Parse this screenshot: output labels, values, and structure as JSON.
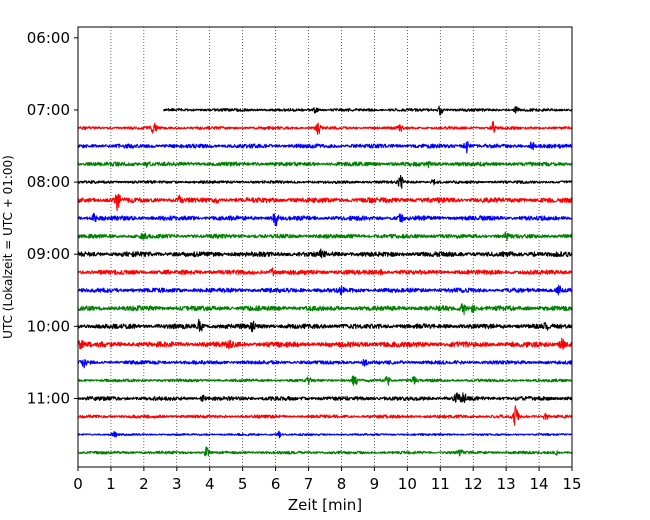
{
  "chart_data": {
    "type": "line",
    "xlabel": "Zeit  [min]",
    "ylabel": "UTC (Lokalzeit = UTC + 01:00)",
    "xlim": [
      0,
      15
    ],
    "x_ticks": [
      0,
      1,
      2,
      3,
      4,
      5,
      6,
      7,
      8,
      9,
      10,
      11,
      12,
      13,
      14,
      15
    ],
    "x_tick_labels": [
      "0",
      "1",
      "2",
      "3",
      "4",
      "5",
      "6",
      "7",
      "8",
      "9",
      "10",
      "11",
      "12",
      "13",
      "14",
      "15"
    ],
    "y_tick_labels": [
      "06:00",
      "07:00",
      "08:00",
      "09:00",
      "10:00",
      "11:00"
    ],
    "y_tick_hours": [
      6,
      7,
      8,
      9,
      10,
      11
    ],
    "ylim_hours": [
      5.85,
      11.95
    ],
    "x_grid": "dotted",
    "row_interval_min": 15,
    "colors": [
      "#000000",
      "#ff0000",
      "#0000ff",
      "#008000"
    ],
    "rows": [
      {
        "start_time": "07:00",
        "color": "#000000",
        "x_start": 2.6,
        "amplitude": 0.35,
        "events": [
          {
            "x": 7.2,
            "amp": 0.8
          },
          {
            "x": 11.0,
            "amp": 1.6
          },
          {
            "x": 13.3,
            "amp": 0.8
          }
        ]
      },
      {
        "start_time": "07:15",
        "color": "#ff0000",
        "x_start": 0,
        "amplitude": 0.35,
        "events": [
          {
            "x": 2.3,
            "amp": 1.6
          },
          {
            "x": 7.3,
            "amp": 2.0
          },
          {
            "x": 9.8,
            "amp": 0.7
          },
          {
            "x": 12.6,
            "amp": 1.8
          }
        ]
      },
      {
        "start_time": "07:30",
        "color": "#0000ff",
        "x_start": 0,
        "amplitude": 0.5,
        "events": [
          {
            "x": 11.8,
            "amp": 1.8
          },
          {
            "x": 13.8,
            "amp": 1.6
          }
        ]
      },
      {
        "start_time": "07:45",
        "color": "#008000",
        "x_start": 0,
        "amplitude": 0.5,
        "events": [
          {
            "x": 2.1,
            "amp": 0.8
          },
          {
            "x": 10.6,
            "amp": 0.9
          }
        ]
      },
      {
        "start_time": "08:00",
        "color": "#000000",
        "x_start": 0,
        "amplitude": 0.35,
        "events": [
          {
            "x": 9.8,
            "amp": 1.9
          },
          {
            "x": 10.8,
            "amp": 0.8
          }
        ]
      },
      {
        "start_time": "08:15",
        "color": "#ff0000",
        "x_start": 0,
        "amplitude": 0.6,
        "events": [
          {
            "x": 1.2,
            "amp": 2.8
          },
          {
            "x": 3.1,
            "amp": 1.3
          },
          {
            "x": 4.2,
            "amp": 1.2
          }
        ]
      },
      {
        "start_time": "08:30",
        "color": "#0000ff",
        "x_start": 0,
        "amplitude": 0.55,
        "events": [
          {
            "x": 0.5,
            "amp": 1.1
          },
          {
            "x": 6.0,
            "amp": 2.2
          },
          {
            "x": 9.8,
            "amp": 1.1
          }
        ]
      },
      {
        "start_time": "08:45",
        "color": "#008000",
        "x_start": 0,
        "amplitude": 0.5,
        "events": [
          {
            "x": 2.0,
            "amp": 0.9
          },
          {
            "x": 13.0,
            "amp": 0.9
          }
        ]
      },
      {
        "start_time": "09:00",
        "color": "#000000",
        "x_start": 0,
        "amplitude": 0.6,
        "events": [
          {
            "x": 7.4,
            "amp": 1.2
          },
          {
            "x": 13.8,
            "amp": 1.0
          }
        ]
      },
      {
        "start_time": "09:15",
        "color": "#ff0000",
        "x_start": 0,
        "amplitude": 0.55,
        "events": [
          {
            "x": 5.9,
            "amp": 1.1
          },
          {
            "x": 9.2,
            "amp": 0.8
          }
        ]
      },
      {
        "start_time": "09:30",
        "color": "#0000ff",
        "x_start": 0,
        "amplitude": 0.55,
        "events": [
          {
            "x": 8.0,
            "amp": 1.0
          },
          {
            "x": 14.6,
            "amp": 1.4
          }
        ]
      },
      {
        "start_time": "09:45",
        "color": "#008000",
        "x_start": 0,
        "amplitude": 0.6,
        "events": [
          {
            "x": 11.7,
            "amp": 1.6
          },
          {
            "x": 12.0,
            "amp": 1.1
          }
        ]
      },
      {
        "start_time": "10:00",
        "color": "#000000",
        "x_start": 0,
        "amplitude": 0.6,
        "events": [
          {
            "x": 3.7,
            "amp": 1.9
          },
          {
            "x": 5.3,
            "amp": 1.1
          },
          {
            "x": 14.2,
            "amp": 1.0
          }
        ]
      },
      {
        "start_time": "10:15",
        "color": "#ff0000",
        "x_start": 0,
        "amplitude": 0.65,
        "events": [
          {
            "x": 0.1,
            "amp": 1.3
          },
          {
            "x": 4.6,
            "amp": 1.0
          },
          {
            "x": 14.7,
            "amp": 1.5
          }
        ]
      },
      {
        "start_time": "10:30",
        "color": "#0000ff",
        "x_start": 0,
        "amplitude": 0.45,
        "events": [
          {
            "x": 0.2,
            "amp": 1.6
          },
          {
            "x": 8.7,
            "amp": 0.9
          }
        ]
      },
      {
        "start_time": "10:45",
        "color": "#008000",
        "x_start": 0,
        "amplitude": 0.35,
        "events": [
          {
            "x": 7.0,
            "amp": 1.0
          },
          {
            "x": 8.4,
            "amp": 2.4
          },
          {
            "x": 9.4,
            "amp": 1.4
          },
          {
            "x": 10.2,
            "amp": 1.0
          }
        ]
      },
      {
        "start_time": "11:00",
        "color": "#000000",
        "x_start": 0,
        "amplitude": 0.5,
        "events": [
          {
            "x": 3.8,
            "amp": 1.0
          },
          {
            "x": 11.5,
            "amp": 1.8
          },
          {
            "x": 11.7,
            "amp": 2.0
          }
        ]
      },
      {
        "start_time": "11:15",
        "color": "#ff0000",
        "x_start": 0,
        "amplitude": 0.4,
        "events": [
          {
            "x": 13.3,
            "amp": 3.2
          },
          {
            "x": 14.2,
            "amp": 0.9
          }
        ]
      },
      {
        "start_time": "11:30",
        "color": "#0000ff",
        "x_start": 0,
        "amplitude": 0.25,
        "events": [
          {
            "x": 1.1,
            "amp": 0.9
          },
          {
            "x": 6.1,
            "amp": 1.0
          }
        ]
      },
      {
        "start_time": "11:45",
        "color": "#008000",
        "x_start": 0,
        "amplitude": 0.35,
        "events": [
          {
            "x": 3.9,
            "amp": 1.5
          },
          {
            "x": 11.6,
            "amp": 1.0
          },
          {
            "x": 14.5,
            "amp": 0.9
          }
        ]
      }
    ]
  }
}
